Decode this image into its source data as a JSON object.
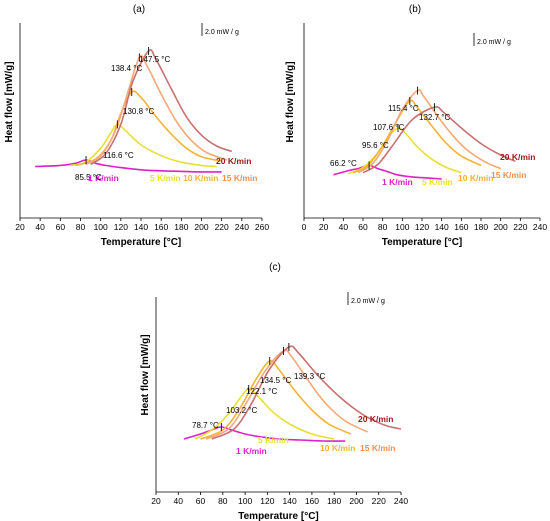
{
  "chart_data": [
    {
      "type": "line",
      "panel_label": "(a)",
      "xlabel": "Temperature [°C]",
      "ylabel": "Heat flow [mW/g]",
      "xlim": [
        20,
        260
      ],
      "xticks": [
        20,
        40,
        60,
        80,
        100,
        120,
        140,
        160,
        180,
        200,
        220,
        240,
        260
      ],
      "scale_bar": "2.0 mW / g",
      "series": [
        {
          "name": "1 K/min",
          "color": "#e020c8",
          "x": [
            35,
            60,
            75,
            85.5,
            95,
            105,
            120,
            140,
            160,
            180,
            200,
            220
          ],
          "y": [
            0.6,
            0.7,
            0.9,
            1.2,
            0.9,
            0.7,
            0.5,
            0.3,
            0.2,
            0.15,
            0.1,
            0.1
          ]
        },
        {
          "name": "5 K/min",
          "color": "#e8e030",
          "x": [
            70,
            85,
            100,
            110,
            116.6,
            125,
            140,
            160,
            180,
            200,
            215
          ],
          "y": [
            0.7,
            1.0,
            2.3,
            3.7,
            4.5,
            3.9,
            2.6,
            1.6,
            1.0,
            0.7,
            0.6
          ]
        },
        {
          "name": "10 K/min",
          "color": "#f5b335",
          "x": [
            75,
            95,
            110,
            120,
            130.8,
            140,
            155,
            170,
            185,
            200,
            220
          ],
          "y": [
            0.7,
            1.3,
            3.0,
            5.5,
            7.5,
            7.0,
            5.2,
            3.6,
            2.3,
            1.5,
            1.1
          ]
        },
        {
          "name": "15 K/min",
          "color": "#f8a878",
          "x": [
            85,
            100,
            115,
            128,
            138.4,
            145,
            160,
            175,
            190,
            205,
            225
          ],
          "y": [
            0.8,
            1.6,
            4.0,
            7.8,
            10.7,
            10.1,
            7.3,
            4.8,
            3.0,
            1.9,
            1.2
          ]
        },
        {
          "name": "20 K/min",
          "color": "#c87070",
          "x": [
            90,
            105,
            120,
            132,
            147.5,
            155,
            170,
            185,
            200,
            215,
            230
          ],
          "y": [
            0.8,
            1.8,
            4.5,
            8.5,
            11.3,
            10.5,
            7.8,
            5.2,
            3.5,
            2.5,
            2.0
          ]
        }
      ],
      "annotations": [
        "85.5 °C",
        "116.6 °C",
        "130.8 °C",
        "138.4 °C",
        "147.5 °C"
      ]
    },
    {
      "type": "line",
      "panel_label": "(b)",
      "xlabel": "Temperature [°C]",
      "ylabel": "Heat flow [mW/g]",
      "xlim": [
        0,
        240
      ],
      "xticks": [
        0,
        20,
        40,
        60,
        80,
        100,
        120,
        140,
        160,
        180,
        200,
        220,
        240
      ],
      "scale_bar": "2.0 mW / g",
      "series": [
        {
          "name": "1 K/min",
          "color": "#e020c8",
          "x": [
            30,
            45,
            55,
            66.2,
            75,
            85,
            95,
            110,
            125,
            140
          ],
          "y": [
            0.5,
            0.9,
            1.1,
            1.4,
            1.1,
            0.8,
            0.5,
            0.3,
            0.2,
            0.1
          ]
        },
        {
          "name": "5 K/min",
          "color": "#e8e030",
          "x": [
            45,
            60,
            75,
            85,
            95.6,
            105,
            115,
            130,
            145,
            160
          ],
          "y": [
            0.6,
            1.2,
            2.6,
            4.0,
            5.0,
            4.3,
            3.2,
            2.0,
            1.2,
            0.7
          ]
        },
        {
          "name": "10 K/min",
          "color": "#f5b335",
          "x": [
            50,
            65,
            80,
            95,
            107.6,
            115,
            130,
            145,
            160,
            180
          ],
          "y": [
            0.7,
            1.4,
            3.3,
            5.8,
            7.6,
            7.0,
            5.2,
            3.5,
            2.3,
            1.4
          ]
        },
        {
          "name": "15 K/min",
          "color": "#f8a878",
          "x": [
            55,
            70,
            85,
            100,
            115.4,
            122,
            137,
            152,
            167,
            185,
            200
          ],
          "y": [
            0.7,
            1.6,
            3.8,
            6.8,
            8.6,
            8.0,
            6.0,
            4.2,
            2.8,
            1.7,
            1.1
          ]
        },
        {
          "name": "20 K/min",
          "color": "#c87070",
          "x": [
            60,
            75,
            90,
            110,
            132.7,
            142,
            160,
            180,
            200,
            215
          ],
          "y": [
            0.7,
            1.5,
            3.3,
            5.8,
            7.0,
            6.5,
            5.0,
            3.5,
            2.4,
            1.8
          ]
        }
      ],
      "annotations": [
        "66.2 °C",
        "95.6 °C",
        "107.6 °C",
        "115.4 °C",
        "132.7 °C"
      ]
    },
    {
      "type": "line",
      "panel_label": "(c)",
      "xlabel": "Temperature [°C]",
      "ylabel": "Heat flow [mW/g]",
      "xlim": [
        20,
        240
      ],
      "xticks": [
        20,
        40,
        60,
        80,
        100,
        120,
        140,
        160,
        180,
        200,
        220,
        240
      ],
      "scale_bar": "2.0 mW / g",
      "series": [
        {
          "name": "1 K/min",
          "color": "#e020c8",
          "x": [
            45,
            60,
            70,
            78.7,
            88,
            100,
            115,
            130,
            150,
            170,
            190
          ],
          "y": [
            0.8,
            1.3,
            1.7,
            2.0,
            1.7,
            1.3,
            1.0,
            0.8,
            0.7,
            0.6,
            0.6
          ]
        },
        {
          "name": "5 K/min",
          "color": "#e8e030",
          "x": [
            55,
            70,
            85,
            95,
            103.2,
            112,
            125,
            140,
            160,
            180
          ],
          "y": [
            0.8,
            1.7,
            3.3,
            4.8,
            5.8,
            5.0,
            3.5,
            2.3,
            1.3,
            0.8
          ]
        },
        {
          "name": "10 K/min",
          "color": "#f5b335",
          "x": [
            60,
            80,
            95,
            110,
            122.1,
            130,
            145,
            160,
            175,
            195
          ],
          "y": [
            0.8,
            1.7,
            3.8,
            6.8,
            8.6,
            7.8,
            5.6,
            3.7,
            2.3,
            1.3
          ]
        },
        {
          "name": "15 K/min",
          "color": "#f8a878",
          "x": [
            65,
            85,
            100,
            118,
            134.5,
            142,
            157,
            172,
            190,
            210
          ],
          "y": [
            0.8,
            1.8,
            4.2,
            7.6,
            9.6,
            9.0,
            6.6,
            4.4,
            2.6,
            1.5
          ]
        },
        {
          "name": "20 K/min",
          "color": "#c87070",
          "x": [
            70,
            90,
            105,
            122,
            139.3,
            148,
            165,
            185,
            205,
            225,
            240
          ],
          "y": [
            0.8,
            1.8,
            4.2,
            7.8,
            10.0,
            9.4,
            7.2,
            5.0,
            3.3,
            2.2,
            1.8
          ]
        }
      ],
      "annotations": [
        "78.7 °C",
        "103.2 °C",
        "122.1 °C",
        "134.5 °C",
        "139.3 °C"
      ]
    }
  ],
  "label_colors": {
    "1 K/min": "#e020c8",
    "5 K/min": "#e8e030",
    "10 K/min": "#f5b335",
    "15 K/min": "#f09050",
    "20 K/min": "#a01818"
  }
}
